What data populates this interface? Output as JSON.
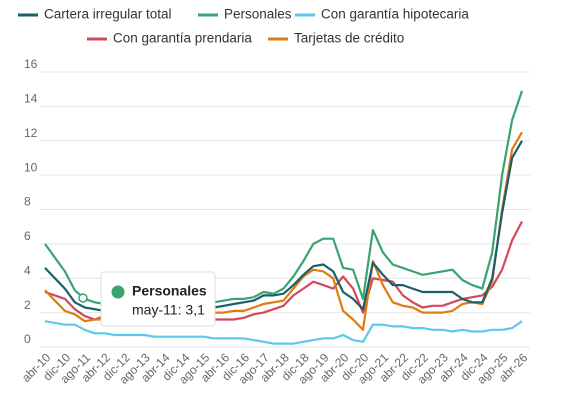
{
  "chart_data": {
    "type": "line",
    "categories": [
      "abr-10",
      null,
      "dic-10",
      null,
      "ago-11",
      null,
      "abr-12",
      null,
      "dic-12",
      null,
      "ago-13",
      null,
      "abr-14",
      null,
      "dic-14",
      null,
      "ago-15",
      null,
      "abr-16",
      null,
      "dic-16",
      null,
      "ago-17",
      null,
      "abr-18",
      null,
      "dic-18",
      null,
      "ago-19",
      null,
      "abr-20",
      null,
      "dic-20",
      null,
      "ago-21",
      null,
      "abr-22",
      null,
      "dic-22",
      null,
      "ago-23",
      null,
      "abr-24",
      null,
      "dic-24",
      null,
      "ago-25",
      null,
      "abr-26"
    ],
    "series": [
      {
        "name": "Cartera irregular total",
        "color": "#1a5f6a",
        "values": [
          4.6,
          4.0,
          3.4,
          2.6,
          2.3,
          2.2,
          2.1,
          2.1,
          2.2,
          2.2,
          2.2,
          2.2,
          2.3,
          2.3,
          2.2,
          2.3,
          2.3,
          2.3,
          2.4,
          2.5,
          2.6,
          2.7,
          3.0,
          3.0,
          3.1,
          3.6,
          4.2,
          4.7,
          4.8,
          4.4,
          3.2,
          2.8,
          2.2,
          4.9,
          4.2,
          3.6,
          3.6,
          3.4,
          3.2,
          3.2,
          3.2,
          3.2,
          2.8,
          2.6,
          2.6,
          4.0,
          7.8,
          11.0,
          12.0
        ]
      },
      {
        "name": "Personales",
        "color": "#3aa36f",
        "values": [
          6.0,
          5.2,
          4.4,
          3.3,
          2.8,
          2.6,
          2.5,
          2.5,
          2.6,
          2.5,
          2.4,
          2.4,
          2.5,
          2.6,
          2.5,
          2.6,
          2.6,
          2.6,
          2.7,
          2.8,
          2.8,
          2.9,
          3.2,
          3.1,
          3.4,
          4.1,
          5.0,
          6.0,
          6.3,
          6.3,
          4.6,
          4.5,
          2.8,
          6.8,
          5.5,
          4.8,
          4.6,
          4.4,
          4.2,
          4.3,
          4.4,
          4.5,
          3.9,
          3.6,
          3.4,
          5.5,
          10.0,
          13.2,
          14.9
        ]
      },
      {
        "name": "Con garantía hipotecaria",
        "color": "#5bc8ec",
        "values": [
          1.5,
          1.4,
          1.3,
          1.3,
          1.0,
          0.8,
          0.8,
          0.7,
          0.7,
          0.7,
          0.7,
          0.6,
          0.6,
          0.6,
          0.6,
          0.6,
          0.6,
          0.5,
          0.5,
          0.5,
          0.5,
          0.4,
          0.3,
          0.2,
          0.2,
          0.2,
          0.3,
          0.4,
          0.5,
          0.5,
          0.7,
          0.4,
          0.3,
          1.3,
          1.3,
          1.2,
          1.2,
          1.1,
          1.1,
          1.0,
          1.0,
          0.9,
          1.0,
          0.9,
          0.9,
          1.0,
          1.0,
          1.1,
          1.5
        ]
      },
      {
        "name": "Con garantía prendaria",
        "color": "#d1495b",
        "values": [
          3.2,
          3.0,
          2.8,
          2.2,
          1.8,
          1.6,
          1.8,
          1.7,
          1.5,
          1.5,
          1.5,
          1.4,
          1.4,
          1.5,
          1.5,
          1.6,
          1.6,
          1.6,
          1.6,
          1.6,
          1.7,
          1.9,
          2.0,
          2.2,
          2.4,
          3.0,
          3.4,
          3.8,
          3.6,
          3.4,
          4.1,
          3.4,
          2.0,
          4.0,
          3.9,
          3.8,
          3.0,
          2.6,
          2.3,
          2.4,
          2.4,
          2.6,
          2.8,
          2.9,
          3.0,
          3.5,
          4.5,
          6.2,
          7.3
        ]
      },
      {
        "name": "Tarjetas de crédito",
        "color": "#e07b12",
        "values": [
          3.3,
          2.7,
          2.1,
          1.9,
          1.5,
          1.6,
          1.6,
          1.6,
          1.8,
          1.7,
          1.8,
          1.8,
          1.9,
          1.9,
          1.9,
          1.9,
          2.0,
          2.0,
          2.0,
          2.1,
          2.1,
          2.3,
          2.5,
          2.6,
          2.7,
          3.4,
          4.1,
          4.5,
          4.4,
          4.0,
          2.1,
          1.6,
          1.0,
          5.0,
          3.6,
          2.6,
          2.4,
          2.3,
          2.0,
          2.0,
          2.0,
          2.1,
          2.5,
          2.6,
          2.5,
          3.8,
          8.0,
          11.5,
          12.5
        ]
      }
    ],
    "ylim": [
      0,
      16
    ],
    "yticks": [
      0,
      2,
      4,
      6,
      8,
      10,
      12,
      14,
      16
    ],
    "grid": true,
    "tooltip": {
      "series": "Personales",
      "label": "may-11: 3,1"
    }
  }
}
